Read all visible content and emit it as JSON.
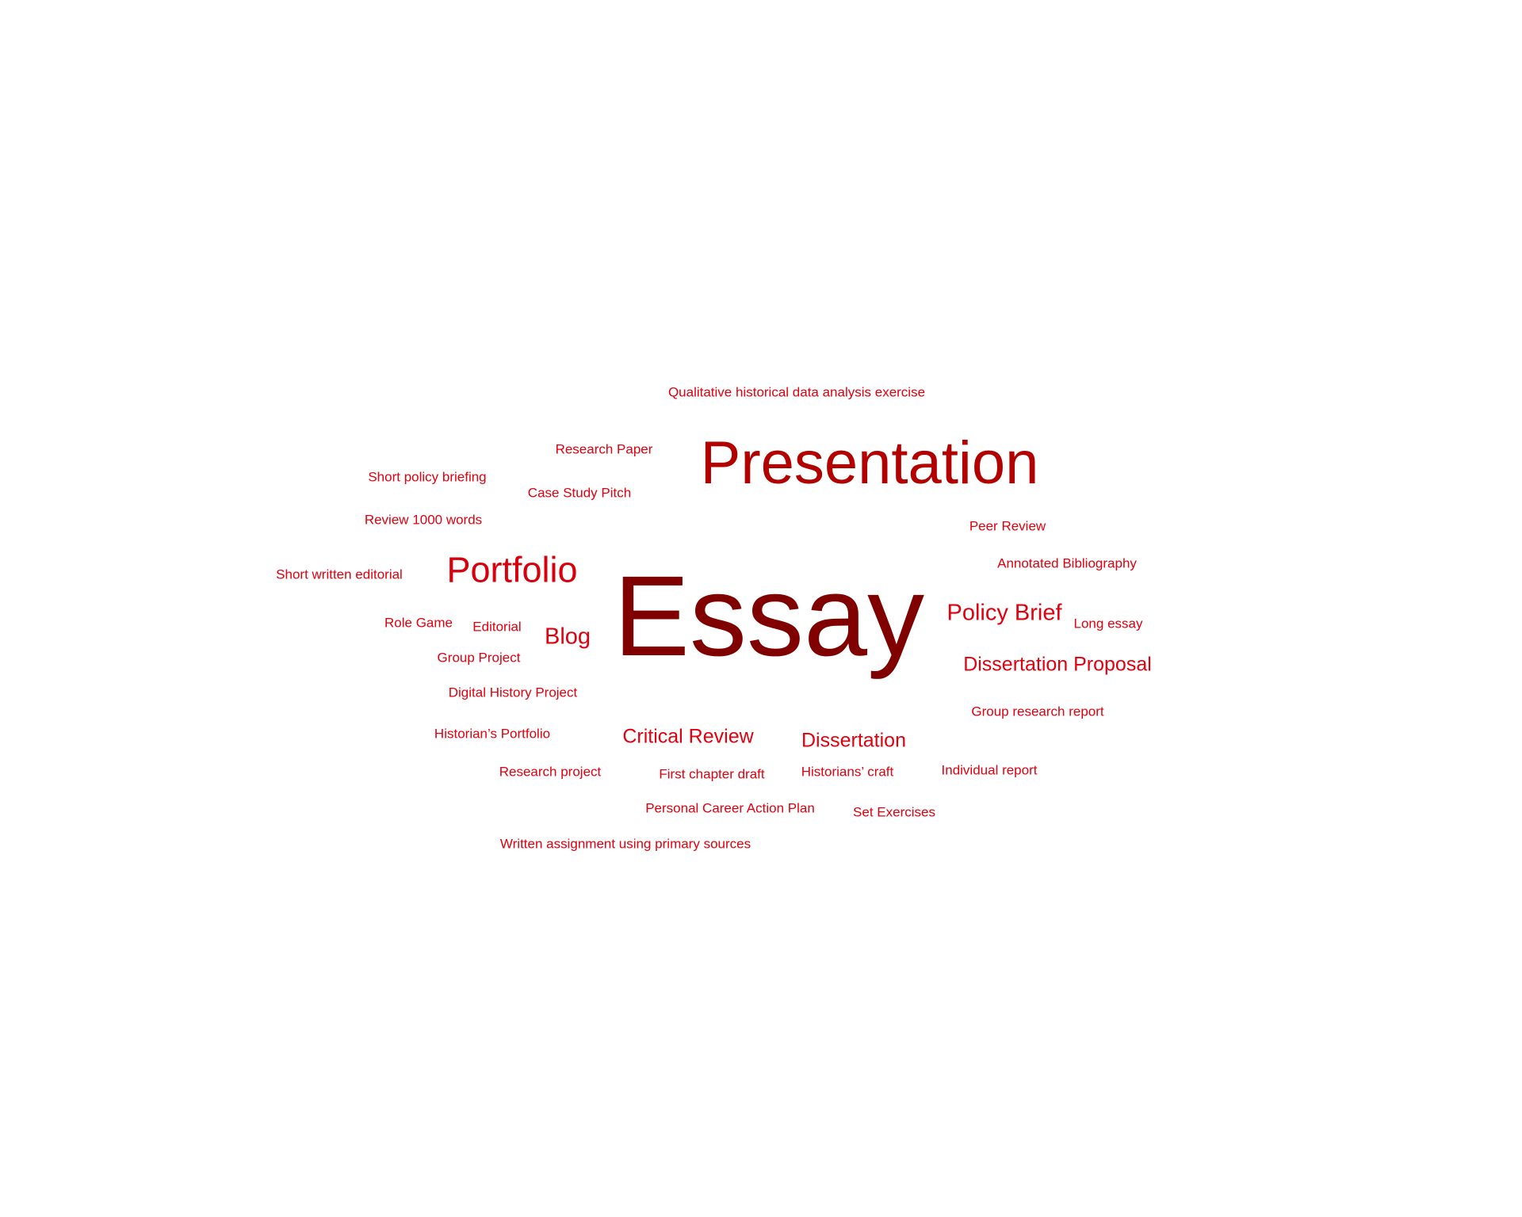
{
  "word_cloud": {
    "colors": {
      "largest": "#800000",
      "large": "#b20000",
      "medium": "#d8000c",
      "small": "#e3000f"
    },
    "words": [
      {
        "text": "Essay",
        "weight": 1
      },
      {
        "text": "Presentation",
        "weight": 2
      },
      {
        "text": "Portfolio",
        "weight": 3
      },
      {
        "text": "Blog",
        "weight": 4
      },
      {
        "text": "Policy Brief",
        "weight": 4
      },
      {
        "text": "Dissertation Proposal",
        "weight": 5
      },
      {
        "text": "Critical Review",
        "weight": 5
      },
      {
        "text": "Dissertation",
        "weight": 5
      },
      {
        "text": "Qualitative historical data analysis exercise",
        "weight": 6
      },
      {
        "text": "Research Paper",
        "weight": 6
      },
      {
        "text": "Short policy briefing",
        "weight": 6
      },
      {
        "text": "Case Study Pitch",
        "weight": 6
      },
      {
        "text": "Review 1000 words",
        "weight": 6
      },
      {
        "text": "Peer Review",
        "weight": 6
      },
      {
        "text": "Annotated Bibliography",
        "weight": 6
      },
      {
        "text": "Short written editorial",
        "weight": 6
      },
      {
        "text": "Role Game",
        "weight": 6
      },
      {
        "text": "Editorial",
        "weight": 6
      },
      {
        "text": "Long essay",
        "weight": 6
      },
      {
        "text": "Group Project",
        "weight": 6
      },
      {
        "text": "Digital History Project",
        "weight": 6
      },
      {
        "text": "Group research report",
        "weight": 6
      },
      {
        "text": "Historian’s Portfolio",
        "weight": 6
      },
      {
        "text": "Research project",
        "weight": 6
      },
      {
        "text": "First chapter draft",
        "weight": 6
      },
      {
        "text": "Historians’ craft",
        "weight": 6
      },
      {
        "text": "Individual report",
        "weight": 6
      },
      {
        "text": "Personal Career Action Plan",
        "weight": 6
      },
      {
        "text": "Set Exercises",
        "weight": 6
      },
      {
        "text": "Written assignment using primary sources",
        "weight": 6
      }
    ]
  }
}
